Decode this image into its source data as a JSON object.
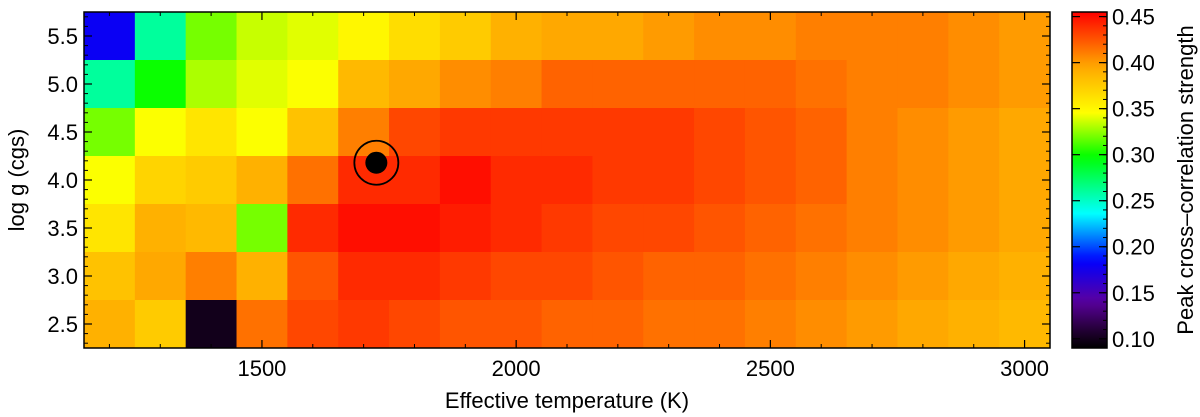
{
  "chart_data": {
    "type": "heatmap",
    "xlabel": "Effective temperature (K)",
    "ylabel": "log g (cgs)",
    "colorbar_label": "Peak cross–correlation strength",
    "x_ticks": [
      1500,
      2000,
      2500,
      3000
    ],
    "y_ticks": [
      2.5,
      3.0,
      3.5,
      4.0,
      4.5,
      5.0,
      5.5
    ],
    "colorbar_ticks": [
      0.1,
      0.15,
      0.2,
      0.25,
      0.3,
      0.35,
      0.4,
      0.45
    ],
    "xlim": [
      1150,
      3050
    ],
    "ylim": [
      2.25,
      5.75
    ],
    "colorbar_range": [
      0.09,
      0.455
    ],
    "colormap": "rainbow",
    "x": [
      1200,
      1300,
      1400,
      1500,
      1600,
      1700,
      1800,
      1900,
      2000,
      2100,
      2200,
      2300,
      2400,
      2500,
      2600,
      2700,
      2800,
      2900,
      3000
    ],
    "y": [
      5.5,
      5.0,
      4.5,
      4.0,
      3.5,
      3.0,
      2.5
    ],
    "z": [
      [
        0.18,
        0.26,
        0.32,
        0.335,
        0.34,
        0.35,
        0.365,
        0.375,
        0.39,
        0.395,
        0.395,
        0.4,
        0.405,
        0.405,
        0.41,
        0.41,
        0.41,
        0.405,
        0.4
      ],
      [
        0.26,
        0.3,
        0.33,
        0.34,
        0.345,
        0.385,
        0.395,
        0.405,
        0.41,
        0.42,
        0.42,
        0.42,
        0.42,
        0.42,
        0.415,
        0.41,
        0.41,
        0.405,
        0.4
      ],
      [
        0.32,
        0.345,
        0.36,
        0.345,
        0.38,
        0.41,
        0.43,
        0.435,
        0.435,
        0.435,
        0.435,
        0.435,
        0.43,
        0.425,
        0.42,
        0.41,
        0.405,
        0.4,
        0.395
      ],
      [
        0.345,
        0.37,
        0.375,
        0.39,
        0.415,
        0.44,
        0.44,
        0.45,
        0.44,
        0.44,
        0.435,
        0.435,
        0.43,
        0.425,
        0.42,
        0.41,
        0.405,
        0.4,
        0.395
      ],
      [
        0.36,
        0.39,
        0.385,
        0.32,
        0.44,
        0.45,
        0.45,
        0.445,
        0.44,
        0.435,
        0.43,
        0.43,
        0.425,
        0.42,
        0.415,
        0.41,
        0.405,
        0.4,
        0.395
      ],
      [
        0.38,
        0.395,
        0.41,
        0.39,
        0.425,
        0.44,
        0.44,
        0.435,
        0.43,
        0.43,
        0.425,
        0.42,
        0.42,
        0.415,
        0.41,
        0.405,
        0.4,
        0.395,
        0.39
      ],
      [
        0.39,
        0.375,
        0.1,
        0.415,
        0.43,
        0.435,
        0.43,
        0.425,
        0.425,
        0.42,
        0.42,
        0.415,
        0.415,
        0.41,
        0.405,
        0.4,
        0.395,
        0.39,
        0.385
      ]
    ],
    "marker": {
      "x": 1725,
      "y": 4.18,
      "style": "filled-circle-with-ring"
    },
    "grid": false
  }
}
